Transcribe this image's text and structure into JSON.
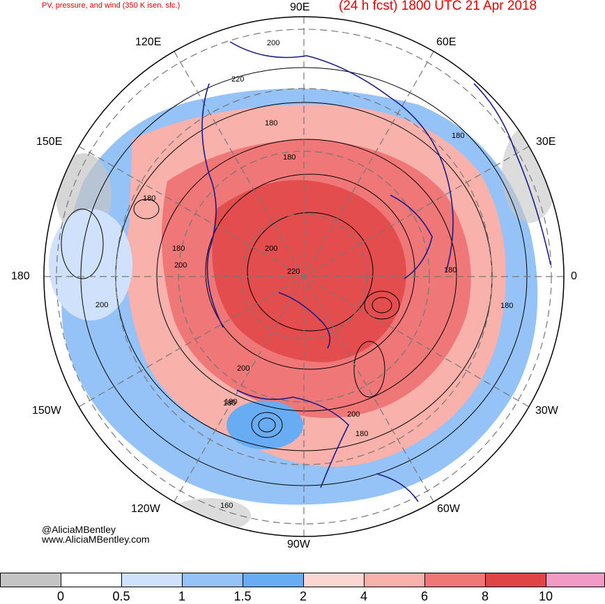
{
  "title_left": "PV, pressure, and wind (350 K isen. sfc.)",
  "title_right": "(24 h fcst) 1800 UTC 21 Apr 2018",
  "longitude_labels": {
    "top": "90E",
    "top_left": "120E",
    "top_right": "60E",
    "upper_left": "150E",
    "upper_right": "30E",
    "left": "180",
    "right": "0",
    "lower_left": "150W",
    "lower_right": "30W",
    "bottom_left": "120W",
    "bottom_right": "60W",
    "bottom": "90W"
  },
  "contour_labels": [
    "200",
    "220",
    "180",
    "180",
    "180",
    "180",
    "180",
    "200",
    "200",
    "220",
    "180",
    "180",
    "180",
    "200",
    "200",
    "180",
    "200",
    "180",
    "160"
  ],
  "credit": {
    "handle": "@AliciaMBentley",
    "site": "www.AliciaMBentley.com"
  },
  "colorbar": {
    "colors": [
      "#c4c4c4",
      "#ffffff",
      "#cfe1fb",
      "#95c2f7",
      "#68acf3",
      "#fbd7d2",
      "#f8b1ab",
      "#f07777",
      "#e04545",
      "#f19ac6"
    ],
    "ticks": [
      "0",
      "0.5",
      "1",
      "1.5",
      "2",
      "4",
      "6",
      "8",
      "10"
    ]
  }
}
